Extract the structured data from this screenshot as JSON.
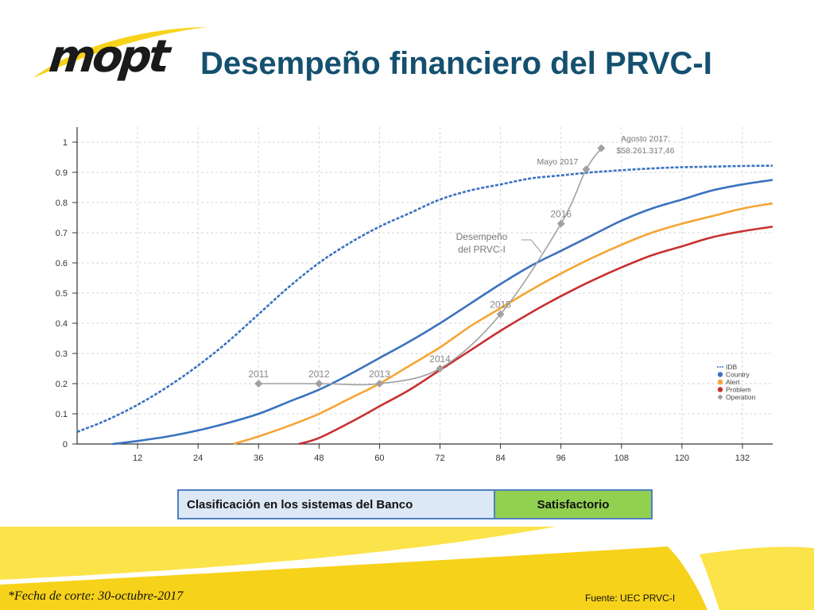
{
  "header": {
    "logo_text": "mopt",
    "title": "Desempeño financiero del PRVC-I"
  },
  "colors": {
    "title": "#14506f",
    "idb": "#3a72c0",
    "country": "#3a72c0",
    "alert": "#f5a534",
    "problem": "#c83030",
    "operation": "#a0a0a0",
    "logo_swoosh": "#f7d21a"
  },
  "chart_data": {
    "type": "line",
    "xlim": [
      0,
      138
    ],
    "ylim": [
      0,
      1.05
    ],
    "xticks": [
      12,
      24,
      36,
      48,
      60,
      72,
      84,
      96,
      108,
      120,
      132
    ],
    "yticks": [
      0,
      0.1,
      0.2,
      0.3,
      0.4,
      0.5,
      0.6,
      0.7,
      0.8,
      0.9,
      1
    ],
    "ytick_labels": [
      "0",
      "0.1",
      "0.2",
      "0.3",
      "0.4",
      "0.5",
      "0.6",
      "0.7",
      "0.8",
      "0.9",
      "1"
    ],
    "grid": true,
    "legend_position": "bottom-right",
    "legend": [
      "IDB",
      "Country",
      "Alert",
      "Problem",
      "Operation"
    ],
    "series": [
      {
        "name": "IDB",
        "style": "dashed",
        "x": [
          0,
          6,
          12,
          18,
          24,
          30,
          36,
          42,
          48,
          54,
          60,
          66,
          72,
          78,
          84,
          90,
          96,
          102,
          108,
          114,
          120,
          126,
          132,
          138
        ],
        "y": [
          0.04,
          0.08,
          0.13,
          0.19,
          0.26,
          0.34,
          0.43,
          0.52,
          0.6,
          0.665,
          0.72,
          0.765,
          0.81,
          0.84,
          0.86,
          0.88,
          0.89,
          0.9,
          0.907,
          0.913,
          0.917,
          0.919,
          0.921,
          0.922
        ]
      },
      {
        "name": "Country",
        "style": "solid",
        "x": [
          7,
          12,
          18,
          24,
          30,
          36,
          42,
          48,
          54,
          60,
          66,
          72,
          78,
          84,
          90,
          96,
          102,
          108,
          114,
          120,
          126,
          132,
          138
        ],
        "y": [
          0.0,
          0.01,
          0.025,
          0.045,
          0.07,
          0.1,
          0.14,
          0.18,
          0.23,
          0.285,
          0.34,
          0.4,
          0.465,
          0.53,
          0.59,
          0.64,
          0.69,
          0.74,
          0.78,
          0.81,
          0.84,
          0.86,
          0.875
        ]
      },
      {
        "name": "Alert",
        "style": "solid",
        "x": [
          31,
          36,
          42,
          48,
          54,
          60,
          66,
          72,
          78,
          84,
          90,
          96,
          102,
          108,
          114,
          120,
          126,
          132,
          138
        ],
        "y": [
          0.0,
          0.025,
          0.06,
          0.1,
          0.15,
          0.2,
          0.26,
          0.32,
          0.39,
          0.45,
          0.51,
          0.565,
          0.615,
          0.66,
          0.7,
          0.73,
          0.755,
          0.78,
          0.797
        ]
      },
      {
        "name": "Problem",
        "style": "solid",
        "x": [
          44,
          48,
          54,
          60,
          66,
          72,
          78,
          84,
          90,
          96,
          102,
          108,
          114,
          120,
          126,
          132,
          138
        ],
        "y": [
          0.0,
          0.02,
          0.07,
          0.125,
          0.18,
          0.245,
          0.31,
          0.375,
          0.435,
          0.49,
          0.54,
          0.585,
          0.625,
          0.655,
          0.685,
          0.705,
          0.72
        ]
      },
      {
        "name": "Operation",
        "style": "solid-markers",
        "x": [
          36,
          48,
          60,
          72,
          84,
          96,
          101,
          104
        ],
        "y": [
          0.2,
          0.2,
          0.2,
          0.25,
          0.43,
          0.73,
          0.91,
          0.98
        ],
        "point_labels": [
          "2011",
          "2012",
          "2013",
          "2014",
          "2015",
          "2016",
          "Mayo 2017",
          ""
        ]
      }
    ],
    "annotations": {
      "operation_label": [
        "Desempeño",
        "del PRVC-I"
      ],
      "agosto_label": [
        "Agosto  2017:",
        "$58.261.317,46"
      ]
    }
  },
  "classification": {
    "label": "Clasificación en los sistemas del Banco",
    "value": "Satisfactorio"
  },
  "footer": {
    "cutoff": "*Fecha de corte: 30-octubre-2017",
    "source": "Fuente: UEC PRVC-I"
  }
}
